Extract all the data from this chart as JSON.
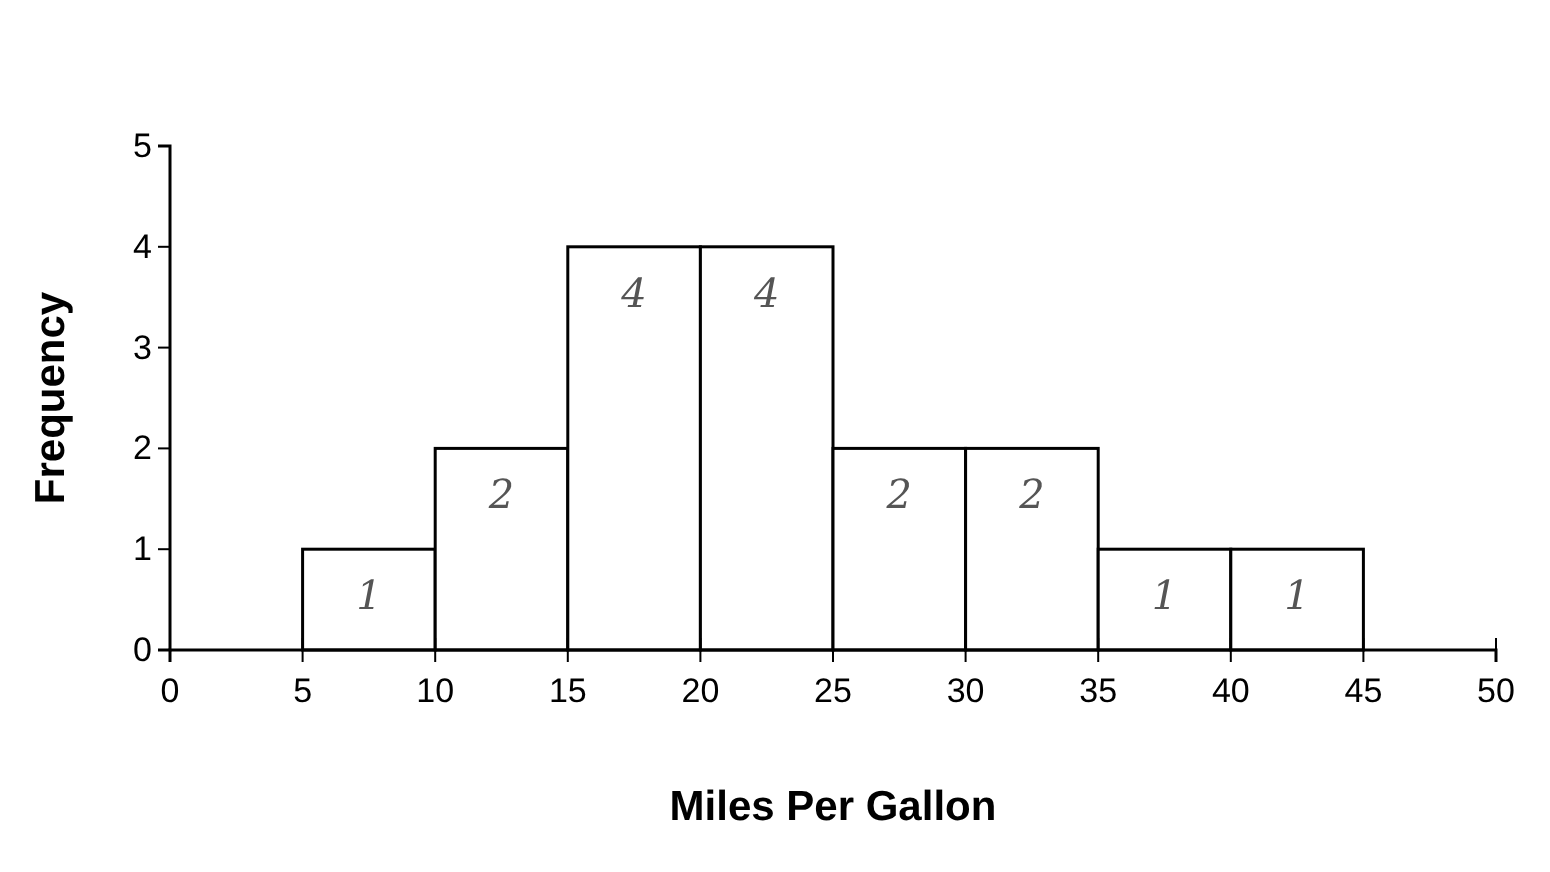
{
  "chart_data": {
    "type": "histogram",
    "xlabel": "Miles Per Gallon",
    "ylabel": "Frequency",
    "bins": [
      5,
      10,
      15,
      20,
      25,
      30,
      35,
      40,
      45
    ],
    "values": [
      1,
      2,
      4,
      4,
      2,
      2,
      1,
      1
    ],
    "color": "#ffffff",
    "data_labels": true,
    "xlim": [
      0,
      50
    ],
    "xticks": [
      0,
      5,
      10,
      15,
      20,
      25,
      30,
      35,
      40,
      45,
      50
    ],
    "ylim": [
      0,
      5
    ],
    "yticks": [
      0,
      1,
      2,
      3,
      4,
      5
    ],
    "grid": false
  }
}
